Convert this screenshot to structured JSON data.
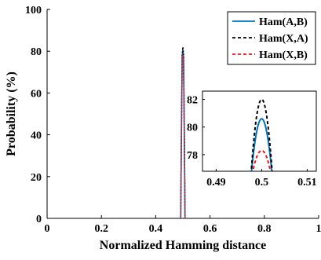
{
  "chart_data": {
    "type": "line",
    "xlabel": "Normalized Hamming distance",
    "ylabel": "Probability (%)",
    "xlim": [
      0,
      1
    ],
    "ylim": [
      0,
      100
    ],
    "xticks": [
      "0",
      "0.2",
      "0.4",
      "0.6",
      "0.8",
      "1"
    ],
    "yticks": [
      "0",
      "20",
      "40",
      "60",
      "80",
      "100"
    ],
    "legend_position": "top-right",
    "series": [
      {
        "name": "Ham(A,B)",
        "color": "#0072BD",
        "style": "solid",
        "x": [
          0.488,
          0.492,
          0.495,
          0.4975,
          0.5,
          0.5025,
          0.505,
          0.508,
          0.512
        ],
        "y": [
          0,
          0,
          45,
          77,
          80.6,
          77,
          45,
          0,
          0
        ]
      },
      {
        "name": "Ham(X,A)",
        "color": "#000000",
        "style": "dashed",
        "x": [
          0.488,
          0.492,
          0.495,
          0.4975,
          0.5,
          0.5025,
          0.505,
          0.508,
          0.512
        ],
        "y": [
          0,
          0,
          46,
          78.5,
          82,
          78.5,
          46,
          0,
          0
        ]
      },
      {
        "name": "Ham(X,B)",
        "color": "#E8191F",
        "style": "dashed",
        "x": [
          0.488,
          0.492,
          0.495,
          0.4975,
          0.5,
          0.5025,
          0.505,
          0.508,
          0.512
        ],
        "y": [
          0,
          0,
          43,
          75,
          78.3,
          75,
          43,
          0,
          0
        ]
      }
    ],
    "inset": {
      "xlim": [
        0.487,
        0.512
      ],
      "ylim": [
        76.8,
        82.6
      ],
      "xticks": [
        "0.49",
        "0.5",
        "0.51"
      ],
      "yticks": [
        "78",
        "80",
        "82"
      ]
    }
  }
}
